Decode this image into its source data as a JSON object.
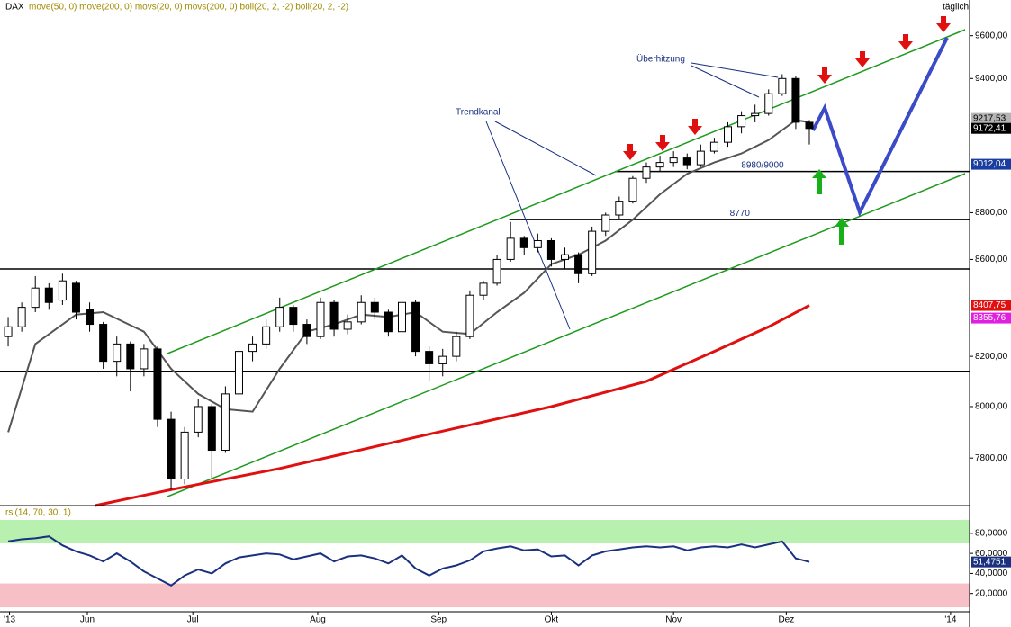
{
  "chart_data": [
    {
      "type": "candlestick",
      "title": "DAX",
      "subtitle": "move(50, 0) move(200, 0) movs(20, 0) movs(200, 0) boll(20, 2, -2) boll(20, 2, -2)",
      "corner_label": "täglich",
      "log_scale": true,
      "xlim": [
        -0.6,
        70.8
      ],
      "ylim": [
        7620,
        9770
      ],
      "yticks": [
        {
          "value": 7800,
          "label": "7800,00"
        },
        {
          "value": 8000,
          "label": "8000,00"
        },
        {
          "value": 8200,
          "label": "8200,00"
        },
        {
          "value": 8600,
          "label": "8600,00"
        },
        {
          "value": 8800,
          "label": "8800,00"
        },
        {
          "value": 9400,
          "label": "9400,00"
        },
        {
          "value": 9600,
          "label": "9600,00"
        }
      ],
      "ohlc": [
        [
          8280,
          8360,
          8240,
          8320
        ],
        [
          8320,
          8420,
          8300,
          8400
        ],
        [
          8400,
          8530,
          8380,
          8480
        ],
        [
          8480,
          8500,
          8390,
          8420
        ],
        [
          8430,
          8540,
          8410,
          8510
        ],
        [
          8500,
          8510,
          8350,
          8380
        ],
        [
          8390,
          8420,
          8300,
          8330
        ],
        [
          8330,
          8340,
          8150,
          8180
        ],
        [
          8180,
          8280,
          8120,
          8250
        ],
        [
          8250,
          8260,
          8060,
          8150
        ],
        [
          8150,
          8250,
          8120,
          8230
        ],
        [
          8230,
          8240,
          7920,
          7950
        ],
        [
          7950,
          7980,
          7680,
          7720
        ],
        [
          7720,
          7920,
          7700,
          7900
        ],
        [
          7900,
          8030,
          7880,
          8000
        ],
        [
          8000,
          8010,
          7720,
          7830
        ],
        [
          7830,
          8080,
          7820,
          8050
        ],
        [
          8050,
          8240,
          8040,
          8220
        ],
        [
          8220,
          8280,
          8180,
          8250
        ],
        [
          8250,
          8350,
          8230,
          8320
        ],
        [
          8320,
          8440,
          8300,
          8400
        ],
        [
          8400,
          8410,
          8300,
          8330
        ],
        [
          8330,
          8350,
          8250,
          8280
        ],
        [
          8280,
          8440,
          8270,
          8420
        ],
        [
          8420,
          8430,
          8280,
          8310
        ],
        [
          8310,
          8370,
          8290,
          8340
        ],
        [
          8340,
          8450,
          8330,
          8420
        ],
        [
          8420,
          8440,
          8350,
          8380
        ],
        [
          8380,
          8390,
          8280,
          8300
        ],
        [
          8300,
          8440,
          8290,
          8420
        ],
        [
          8420,
          8430,
          8200,
          8220
        ],
        [
          8220,
          8240,
          8100,
          8170
        ],
        [
          8170,
          8230,
          8120,
          8200
        ],
        [
          8200,
          8300,
          8180,
          8280
        ],
        [
          8280,
          8470,
          8270,
          8450
        ],
        [
          8450,
          8510,
          8430,
          8500
        ],
        [
          8500,
          8620,
          8490,
          8600
        ],
        [
          8600,
          8760,
          8590,
          8690
        ],
        [
          8690,
          8700,
          8620,
          8650
        ],
        [
          8650,
          8710,
          8630,
          8680
        ],
        [
          8680,
          8690,
          8570,
          8600
        ],
        [
          8600,
          8650,
          8560,
          8620
        ],
        [
          8620,
          8630,
          8500,
          8540
        ],
        [
          8540,
          8740,
          8530,
          8720
        ],
        [
          8720,
          8800,
          8700,
          8790
        ],
        [
          8790,
          8870,
          8770,
          8850
        ],
        [
          8850,
          8960,
          8840,
          8950
        ],
        [
          8950,
          9020,
          8930,
          9000
        ],
        [
          9000,
          9050,
          8980,
          9020
        ],
        [
          9020,
          9070,
          9000,
          9040
        ],
        [
          9040,
          9060,
          8990,
          9010
        ],
        [
          9010,
          9100,
          9000,
          9070
        ],
        [
          9070,
          9130,
          9060,
          9110
        ],
        [
          9110,
          9200,
          9090,
          9180
        ],
        [
          9180,
          9250,
          9150,
          9230
        ],
        [
          9230,
          9280,
          9200,
          9240
        ],
        [
          9240,
          9350,
          9230,
          9330
        ],
        [
          9330,
          9420,
          9320,
          9400
        ],
        [
          9400,
          9410,
          9170,
          9200
        ],
        [
          9200,
          9210,
          9100,
          9172
        ]
      ],
      "series": [
        {
          "color": "#555555",
          "x": [
            0,
            2,
            5,
            7,
            10,
            12,
            14,
            16,
            18,
            20,
            22,
            24,
            26,
            28,
            30,
            32,
            34,
            36,
            38,
            40,
            42,
            44,
            46,
            48,
            50,
            52,
            54,
            56,
            58,
            59
          ],
          "values": [
            7900,
            8250,
            8370,
            8380,
            8300,
            8150,
            8050,
            7990,
            7980,
            8150,
            8300,
            8330,
            8370,
            8360,
            8380,
            8300,
            8290,
            8380,
            8460,
            8580,
            8620,
            8680,
            8770,
            8880,
            8970,
            9020,
            9060,
            9120,
            9210,
            9200
          ]
        },
        {
          "color": "#e01010",
          "x": [
            6.4,
            12,
            20,
            30,
            40,
            47,
            52,
            56,
            59
          ],
          "values": [
            7620,
            7680,
            7760,
            7880,
            8000,
            8100,
            8220,
            8320,
            8408
          ]
        }
      ],
      "levels": [
        {
          "value": 8980,
          "x0": 44.7,
          "label": "8980/9000"
        },
        {
          "value": 8770,
          "x0": 36.9,
          "label": "8770"
        },
        {
          "value": 8560,
          "x0": -0.6
        },
        {
          "value": 8140,
          "x0": -0.6
        }
      ],
      "price_labels": [
        {
          "value": 9217.53,
          "label": "9217,53",
          "color": "#b4b4b4",
          "text_color": "#000000"
        },
        {
          "value": 9172.41,
          "label": "9172,41",
          "color": "#000000",
          "text_color": "#ffffff"
        },
        {
          "value": 9012.04,
          "label": "9012,04",
          "color": "#1a3ea0",
          "text_color": "#ffffff"
        },
        {
          "value": 8407.75,
          "label": "8407,75",
          "color": "#e01010",
          "text_color": "#ffffff"
        },
        {
          "value": 8355.76,
          "label": "8355,76",
          "color": "#e020e0",
          "text_color": "#ffffff"
        }
      ],
      "annotations": [
        "Überhitzung",
        "Trendkanal"
      ]
    },
    {
      "type": "line",
      "title": "rsi(14, 70, 30, 1)",
      "xlim": [
        -0.6,
        70.8
      ],
      "ylim": [
        0,
        105
      ],
      "xticks": [
        {
          "value": 0.1,
          "label": "'13"
        },
        {
          "value": 5.83,
          "label": "Jun"
        },
        {
          "value": 13.6,
          "label": "Jul"
        },
        {
          "value": 22.8,
          "label": "Aug"
        },
        {
          "value": 31.7,
          "label": "Sep"
        },
        {
          "value": 40.0,
          "label": "Okt"
        },
        {
          "value": 49.0,
          "label": "Nov"
        },
        {
          "value": 57.3,
          "label": "Dez"
        },
        {
          "value": 69.4,
          "label": "'14"
        }
      ],
      "yticks": [
        {
          "value": 20,
          "label": "20,0000"
        },
        {
          "value": 40,
          "label": "40,0000"
        },
        {
          "value": 60,
          "label": "60,0000"
        },
        {
          "value": 80,
          "label": "80,0000"
        }
      ],
      "overbought": 70,
      "oversold": 30,
      "series": [
        {
          "color": "#1a3080",
          "x": [
            0,
            1,
            2,
            3,
            4,
            5,
            6,
            7,
            8,
            9,
            10,
            11,
            12,
            13,
            14,
            15,
            16,
            17,
            18,
            19,
            20,
            21,
            22,
            23,
            24,
            25,
            26,
            27,
            28,
            29,
            30,
            31,
            32,
            33,
            34,
            35,
            36,
            37,
            38,
            39,
            40,
            41,
            42,
            43,
            44,
            45,
            46,
            47,
            48,
            49,
            50,
            51,
            52,
            53,
            54,
            55,
            56,
            57,
            58,
            59
          ],
          "values": [
            72,
            74,
            75,
            77,
            68,
            62,
            58,
            52,
            60,
            52,
            42,
            35,
            28,
            38,
            44,
            40,
            50,
            56,
            58,
            60,
            59,
            54,
            57,
            60,
            52,
            57,
            58,
            55,
            50,
            58,
            45,
            38,
            45,
            48,
            53,
            62,
            65,
            67,
            63,
            64,
            57,
            58,
            48,
            58,
            62,
            64,
            66,
            67,
            66,
            67,
            63,
            66,
            67,
            66,
            69,
            66,
            69,
            72,
            55,
            51.4751
          ]
        }
      ],
      "last_label": {
        "value": 51.4751,
        "label": "51,4751"
      }
    }
  ]
}
